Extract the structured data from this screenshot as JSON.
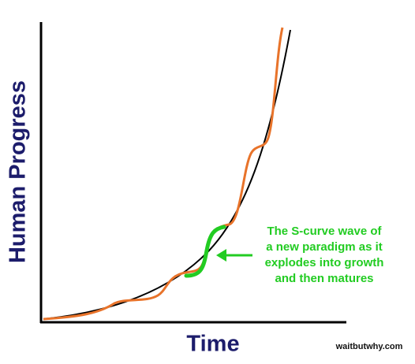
{
  "axes": {
    "y_label": "Human Progress",
    "x_label": "Time"
  },
  "annotation": {
    "lines": [
      "The S-curve wave of",
      "a new paradigm as it",
      "explodes into growth",
      "and then matures"
    ]
  },
  "credit": "waitbutwhy.com"
}
